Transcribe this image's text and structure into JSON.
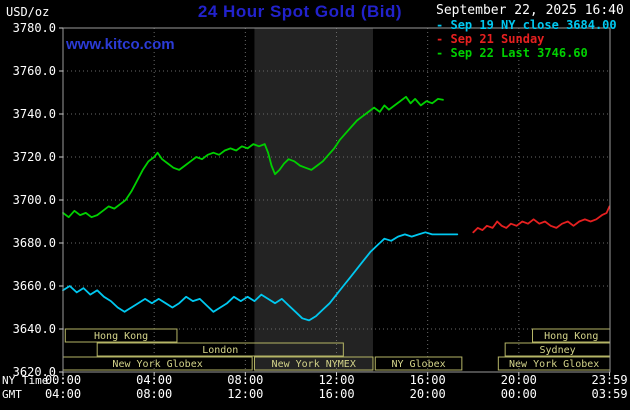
{
  "palette": {
    "background": "#000000",
    "title": "#2222cc",
    "link": "#2b3bd6",
    "text": "#ffffff",
    "grid": "#6a6a6a",
    "border": "#9a9a9a",
    "axis": "#cccccc",
    "session": "#b5b566",
    "session_text": "#d4d48a",
    "band": "#232323"
  },
  "watermark": "www.kitco.com",
  "header": {
    "datetime": "September 22, 2025 16:40"
  },
  "legend": {
    "marker": "-"
  },
  "chart_data": {
    "type": "line",
    "title": "24 Hour Spot Gold (Bid)",
    "y_axis": {
      "unit": "USD/oz",
      "min": 3620,
      "max": 3780,
      "step": 20,
      "labels": [
        "3780.0",
        "3760.0",
        "3740.0",
        "3720.0",
        "3700.0",
        "3680.0",
        "3660.0",
        "3640.0",
        "3620.0"
      ]
    },
    "x_axis": {
      "row_labels": [
        "NY Time",
        "GMT"
      ],
      "ticks": [
        {
          "hour": 0,
          "ny": "00:00",
          "gmt": "04:00"
        },
        {
          "hour": 4,
          "ny": "04:00",
          "gmt": "08:00"
        },
        {
          "hour": 8,
          "ny": "08:00",
          "gmt": "12:00"
        },
        {
          "hour": 12,
          "ny": "12:00",
          "gmt": "16:00"
        },
        {
          "hour": 16,
          "ny": "16:00",
          "gmt": "20:00"
        },
        {
          "hour": 20,
          "ny": "20:00",
          "gmt": "00:00"
        },
        {
          "hour": 23.98,
          "ny": "23:59",
          "gmt": "03:59"
        }
      ]
    },
    "shaded_band_hours": [
      8.4,
      13.6
    ],
    "sessions": [
      {
        "row": 0,
        "label": "Hong Kong",
        "start": 0.1,
        "end": 5.0
      },
      {
        "row": 0,
        "label": "Hong Kong",
        "start": 20.6,
        "end": 24
      },
      {
        "row": 1,
        "label": "London",
        "start": 1.5,
        "end": 12.3
      },
      {
        "row": 1,
        "label": "Sydney",
        "start": 19.4,
        "end": 24
      },
      {
        "row": 2,
        "label": "New York Globex",
        "start": 0,
        "end": 8.3
      },
      {
        "row": 2,
        "label": "New York NYMEX",
        "start": 8.4,
        "end": 13.6
      },
      {
        "row": 2,
        "label": "NY Globex",
        "start": 13.7,
        "end": 17.5
      },
      {
        "row": 2,
        "label": "New York Globex",
        "start": 19.1,
        "end": 24
      }
    ],
    "series": [
      {
        "name": "Sep 19 NY close 3684.00",
        "color": "#00c8f0",
        "points": [
          [
            0,
            3658
          ],
          [
            0.3,
            3660
          ],
          [
            0.6,
            3657
          ],
          [
            0.9,
            3659
          ],
          [
            1.2,
            3656
          ],
          [
            1.5,
            3658
          ],
          [
            1.8,
            3655
          ],
          [
            2.1,
            3653
          ],
          [
            2.4,
            3650
          ],
          [
            2.7,
            3648
          ],
          [
            3,
            3650
          ],
          [
            3.3,
            3652
          ],
          [
            3.6,
            3654
          ],
          [
            3.9,
            3652
          ],
          [
            4.2,
            3654
          ],
          [
            4.5,
            3652
          ],
          [
            4.8,
            3650
          ],
          [
            5.1,
            3652
          ],
          [
            5.4,
            3655
          ],
          [
            5.7,
            3653
          ],
          [
            6,
            3654
          ],
          [
            6.3,
            3651
          ],
          [
            6.6,
            3648
          ],
          [
            6.9,
            3650
          ],
          [
            7.2,
            3652
          ],
          [
            7.5,
            3655
          ],
          [
            7.8,
            3653
          ],
          [
            8.1,
            3655
          ],
          [
            8.4,
            3653
          ],
          [
            8.7,
            3656
          ],
          [
            9,
            3654
          ],
          [
            9.3,
            3652
          ],
          [
            9.6,
            3654
          ],
          [
            9.9,
            3651
          ],
          [
            10.2,
            3648
          ],
          [
            10.5,
            3645
          ],
          [
            10.8,
            3644
          ],
          [
            11.1,
            3646
          ],
          [
            11.4,
            3649
          ],
          [
            11.7,
            3652
          ],
          [
            12,
            3656
          ],
          [
            12.3,
            3660
          ],
          [
            12.6,
            3664
          ],
          [
            12.9,
            3668
          ],
          [
            13.2,
            3672
          ],
          [
            13.5,
            3676
          ],
          [
            13.8,
            3679
          ],
          [
            14.1,
            3682
          ],
          [
            14.4,
            3681
          ],
          [
            14.7,
            3683
          ],
          [
            15,
            3684
          ],
          [
            15.3,
            3683
          ],
          [
            15.6,
            3684
          ],
          [
            15.9,
            3685
          ],
          [
            16.2,
            3684
          ],
          [
            16.5,
            3684
          ],
          [
            16.9,
            3684
          ],
          [
            17.3,
            3684
          ]
        ]
      },
      {
        "name": "Sep 21 Sunday",
        "color": "#e62020",
        "points": [
          [
            18,
            3685
          ],
          [
            18.2,
            3687
          ],
          [
            18.4,
            3686
          ],
          [
            18.6,
            3688
          ],
          [
            18.85,
            3687
          ],
          [
            19.05,
            3690
          ],
          [
            19.25,
            3688
          ],
          [
            19.45,
            3687
          ],
          [
            19.65,
            3689
          ],
          [
            19.9,
            3688
          ],
          [
            20.15,
            3690
          ],
          [
            20.4,
            3689
          ],
          [
            20.65,
            3691
          ],
          [
            20.9,
            3689
          ],
          [
            21.15,
            3690
          ],
          [
            21.4,
            3688
          ],
          [
            21.65,
            3687
          ],
          [
            21.9,
            3689
          ],
          [
            22.15,
            3690
          ],
          [
            22.4,
            3688
          ],
          [
            22.65,
            3690
          ],
          [
            22.9,
            3691
          ],
          [
            23.15,
            3690
          ],
          [
            23.4,
            3691
          ],
          [
            23.65,
            3693
          ],
          [
            23.85,
            3694
          ],
          [
            23.98,
            3697
          ]
        ]
      },
      {
        "name": "Sep 22 Last 3746.60",
        "color": "#00d000",
        "points": [
          [
            0,
            3694
          ],
          [
            0.25,
            3692
          ],
          [
            0.5,
            3695
          ],
          [
            0.75,
            3693
          ],
          [
            1,
            3694
          ],
          [
            1.25,
            3692
          ],
          [
            1.5,
            3693
          ],
          [
            1.75,
            3695
          ],
          [
            2,
            3697
          ],
          [
            2.25,
            3696
          ],
          [
            2.5,
            3698
          ],
          [
            2.75,
            3700
          ],
          [
            3,
            3704
          ],
          [
            3.25,
            3709
          ],
          [
            3.5,
            3714
          ],
          [
            3.75,
            3718
          ],
          [
            4,
            3720
          ],
          [
            4.15,
            3722
          ],
          [
            4.35,
            3719
          ],
          [
            4.6,
            3717
          ],
          [
            4.85,
            3715
          ],
          [
            5.1,
            3714
          ],
          [
            5.35,
            3716
          ],
          [
            5.6,
            3718
          ],
          [
            5.85,
            3720
          ],
          [
            6.1,
            3719
          ],
          [
            6.35,
            3721
          ],
          [
            6.6,
            3722
          ],
          [
            6.85,
            3721
          ],
          [
            7.1,
            3723
          ],
          [
            7.35,
            3724
          ],
          [
            7.6,
            3723
          ],
          [
            7.85,
            3725
          ],
          [
            8.1,
            3724
          ],
          [
            8.35,
            3726
          ],
          [
            8.6,
            3725
          ],
          [
            8.85,
            3726
          ],
          [
            9,
            3722
          ],
          [
            9.15,
            3716
          ],
          [
            9.3,
            3712
          ],
          [
            9.5,
            3714
          ],
          [
            9.7,
            3717
          ],
          [
            9.9,
            3719
          ],
          [
            10.15,
            3718
          ],
          [
            10.4,
            3716
          ],
          [
            10.65,
            3715
          ],
          [
            10.9,
            3714
          ],
          [
            11.15,
            3716
          ],
          [
            11.4,
            3718
          ],
          [
            11.65,
            3721
          ],
          [
            11.9,
            3724
          ],
          [
            12.15,
            3728
          ],
          [
            12.4,
            3731
          ],
          [
            12.65,
            3734
          ],
          [
            12.9,
            3737
          ],
          [
            13.15,
            3739
          ],
          [
            13.4,
            3741
          ],
          [
            13.65,
            3743
          ],
          [
            13.9,
            3741
          ],
          [
            14.1,
            3744
          ],
          [
            14.3,
            3742
          ],
          [
            14.55,
            3744
          ],
          [
            14.8,
            3746
          ],
          [
            15.05,
            3748
          ],
          [
            15.25,
            3745
          ],
          [
            15.45,
            3747
          ],
          [
            15.7,
            3744
          ],
          [
            15.95,
            3746
          ],
          [
            16.2,
            3745
          ],
          [
            16.45,
            3747
          ],
          [
            16.67,
            3746.6
          ]
        ]
      }
    ]
  }
}
